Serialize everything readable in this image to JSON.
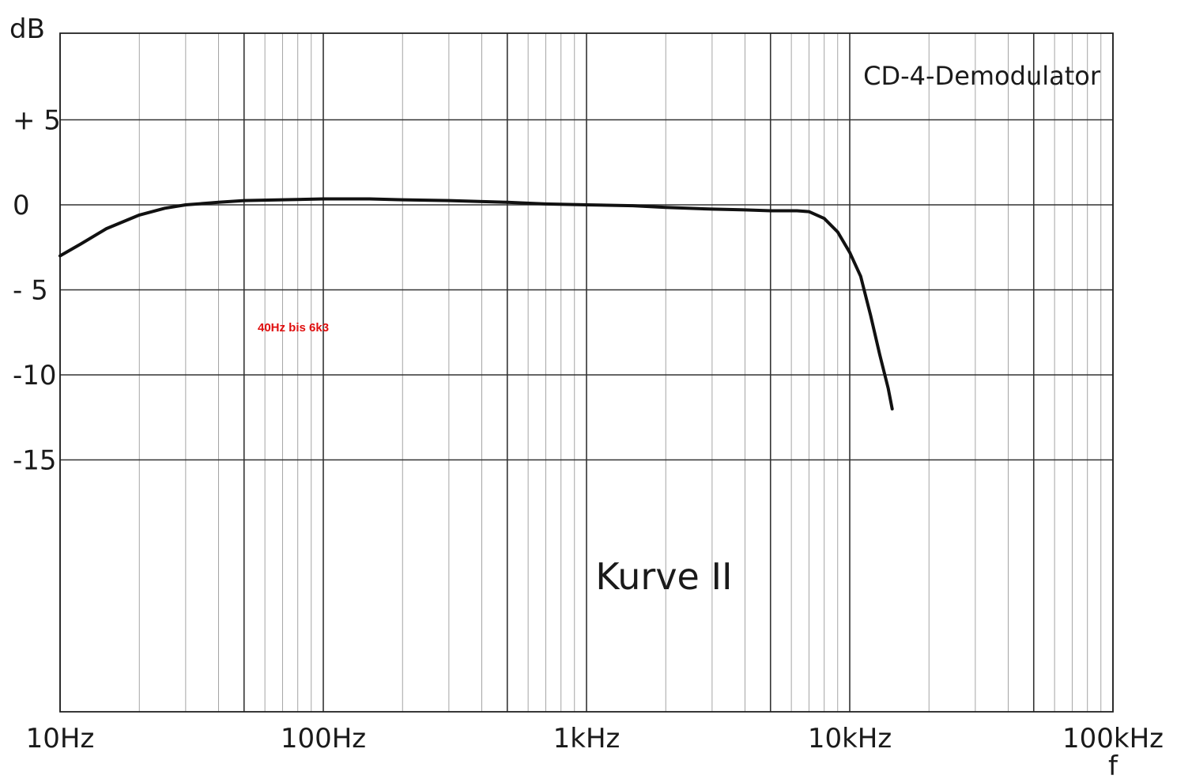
{
  "chart_data": {
    "type": "line",
    "title": "CD-4-Demodulator",
    "curve_label": "Kurve II",
    "annotation": "40Hz bis 6k3",
    "annotation_color": "#e01010",
    "line_color": "#111111",
    "ylabel": "dB",
    "xlabel": "f",
    "x_scale": "log",
    "xlim": [
      10,
      100000
    ],
    "ylim": [
      -30,
      10
    ],
    "grid": true,
    "legend": "none",
    "x_ticks": [
      {
        "value": 10,
        "label": "10Hz"
      },
      {
        "value": 100,
        "label": "100Hz"
      },
      {
        "value": 1000,
        "label": "1kHz"
      },
      {
        "value": 10000,
        "label": "10kHz"
      },
      {
        "value": 100000,
        "label": "100kHz"
      }
    ],
    "y_ticks": [
      {
        "value": 5,
        "label": "+ 5"
      },
      {
        "value": 0,
        "label": "0"
      },
      {
        "value": -5,
        "label": "- 5"
      },
      {
        "value": -10,
        "label": "-10"
      },
      {
        "value": -15,
        "label": "-15"
      }
    ],
    "series": [
      {
        "x": [
          10,
          12,
          15,
          20,
          25,
          30,
          40,
          50,
          70,
          100,
          150,
          200,
          300,
          500,
          700,
          1000,
          1500,
          2000,
          3000,
          4000,
          5000,
          6300,
          7000,
          8000,
          9000,
          10000,
          11000,
          12000,
          13000,
          14000,
          14500
        ],
        "y": [
          -3.0,
          -2.3,
          -1.4,
          -0.6,
          -0.2,
          0.0,
          0.15,
          0.25,
          0.3,
          0.35,
          0.35,
          0.3,
          0.25,
          0.15,
          0.05,
          0.0,
          -0.05,
          -0.15,
          -0.25,
          -0.3,
          -0.35,
          -0.35,
          -0.4,
          -0.8,
          -1.6,
          -2.8,
          -4.2,
          -6.5,
          -8.8,
          -10.8,
          -12.0
        ]
      }
    ]
  }
}
